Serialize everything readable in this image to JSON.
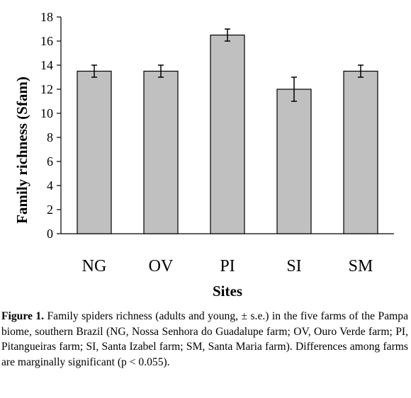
{
  "chart_data": {
    "type": "bar",
    "categories": [
      "NG",
      "OV",
      "PI",
      "SI",
      "SM"
    ],
    "values": [
      13.5,
      13.5,
      16.5,
      12.0,
      13.5
    ],
    "errors": [
      0.5,
      0.5,
      0.5,
      1.0,
      0.5
    ],
    "xlabel": "Sites",
    "ylabel": "Family richness  (Sfam)",
    "ylim": [
      0,
      18
    ],
    "yticks": [
      "0",
      "2",
      "4",
      "6",
      "8",
      "10",
      "12",
      "14",
      "16",
      "18"
    ],
    "bar_color": "#c0c0c0",
    "grid": false,
    "legend": "none"
  },
  "caption": {
    "label": "Figure 1.",
    "text": "Family spiders richness (adults and young, ± s.e.) in the five farms of the Pampa biome, southern Brazil (NG, Nossa Senhora do Guadalupe farm; OV, Ouro Verde farm; PI, Pitangueiras farm; SI, Santa Izabel farm; SM, Santa Maria farm). Differences among farms are marginally significant (p < 0.055)."
  }
}
